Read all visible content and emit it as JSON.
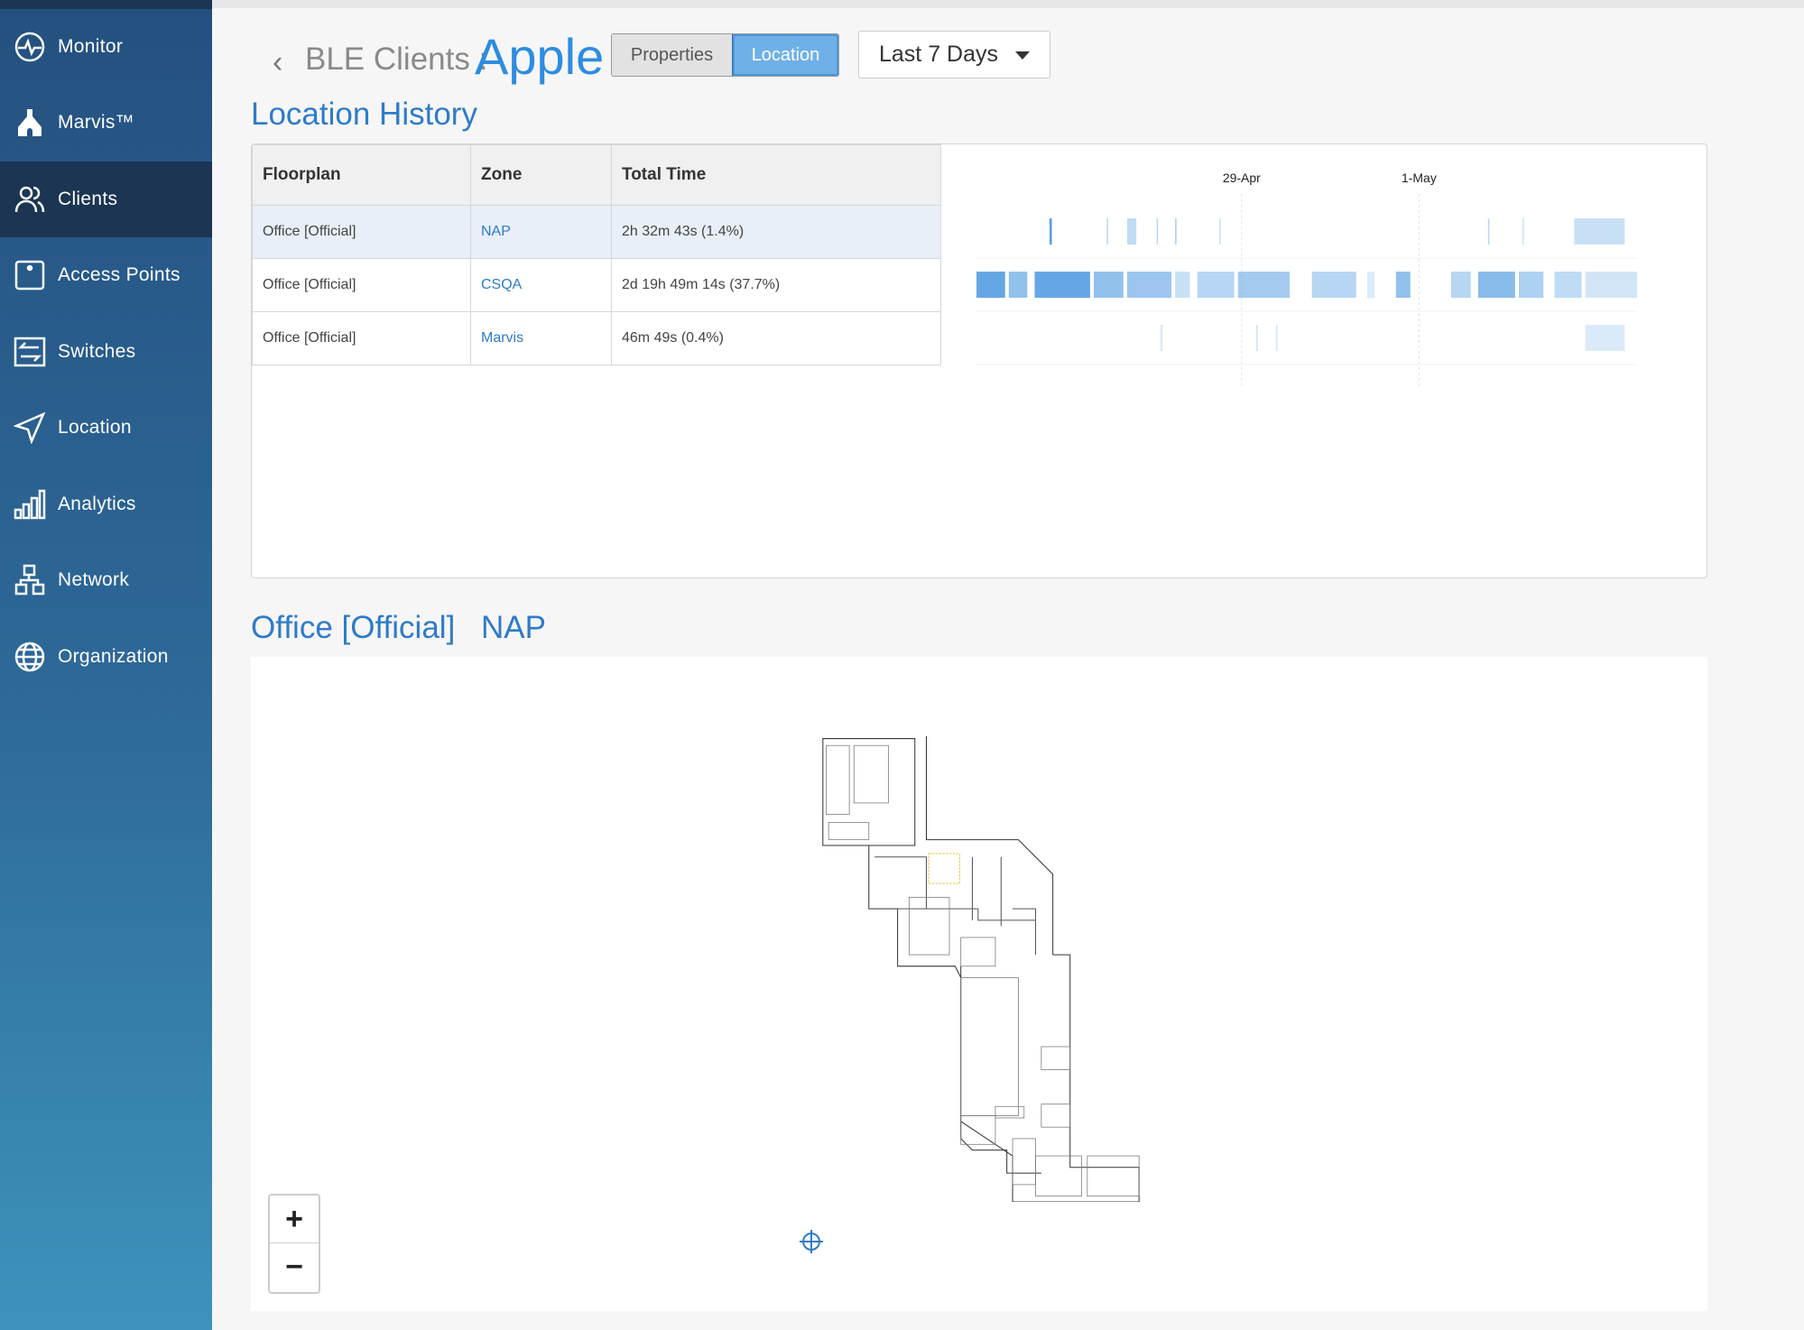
{
  "sidebar": {
    "items": [
      {
        "label": "Monitor",
        "icon": "monitor-icon"
      },
      {
        "label": "Marvis™",
        "icon": "marvis-icon"
      },
      {
        "label": "Clients",
        "icon": "clients-icon",
        "active": true
      },
      {
        "label": "Access Points",
        "icon": "access-point-icon"
      },
      {
        "label": "Switches",
        "icon": "switches-icon"
      },
      {
        "label": "Location",
        "icon": "location-arrow-icon"
      },
      {
        "label": "Analytics",
        "icon": "analytics-icon"
      },
      {
        "label": "Network",
        "icon": "network-icon"
      },
      {
        "label": "Organization",
        "icon": "globe-icon"
      }
    ]
  },
  "header": {
    "breadcrumb": "BLE Clients :",
    "client_name": "Apple",
    "tabs": {
      "properties": "Properties",
      "location": "Location"
    },
    "active_tab": "Location",
    "range": "Last 7 Days"
  },
  "history": {
    "title": "Location History",
    "columns": [
      "Floorplan",
      "Zone",
      "Total Time"
    ],
    "rows": [
      {
        "floorplan": "Office [Official]",
        "zone": "NAP",
        "total": "2h 32m 43s (1.4%)"
      },
      {
        "floorplan": "Office [Official]",
        "zone": "CSQA",
        "total": "2d 19h 49m 14s (37.7%)"
      },
      {
        "floorplan": "Office [Official]",
        "zone": "Marvis",
        "total": "46m 49s (0.4%)"
      }
    ]
  },
  "chart_data": {
    "type": "timeline",
    "x_ticks": [
      "29-Apr",
      "1-May"
    ],
    "x_range": [
      "26-Apr 00:00",
      "3-May 11:00"
    ],
    "color": "#4a98e0",
    "series": [
      {
        "zone": "NAP",
        "intervals": [
          [
            "26-Apr 20:00",
            "26-Apr 20:40",
            0.9
          ],
          [
            "27-Apr 11:30",
            "27-Apr 11:50",
            0.4
          ],
          [
            "27-Apr 17:00",
            "27-Apr 19:30",
            0.35
          ],
          [
            "28-Apr 01:00",
            "28-Apr 01:20",
            0.4
          ],
          [
            "28-Apr 06:00",
            "28-Apr 06:20",
            0.5
          ],
          [
            "28-Apr 18:00",
            "28-Apr 18:15",
            0.3
          ],
          [
            "1-May 18:40",
            "1-May 19:00",
            0.4
          ],
          [
            "2-May 04:00",
            "2-May 04:20",
            0.3
          ],
          [
            "2-May 18:00",
            "3-May 07:40",
            0.3
          ]
        ]
      },
      {
        "zone": "CSQA",
        "intervals": [
          [
            "26-Apr 00:15",
            "26-Apr 08:00",
            0.85
          ],
          [
            "26-Apr 09:00",
            "26-Apr 14:00",
            0.6
          ],
          [
            "26-Apr 16:00",
            "27-Apr 07:00",
            0.85
          ],
          [
            "27-Apr 08:00",
            "27-Apr 16:00",
            0.6
          ],
          [
            "27-Apr 17:00",
            "28-Apr 05:00",
            0.55
          ],
          [
            "28-Apr 06:00",
            "28-Apr 10:00",
            0.3
          ],
          [
            "28-Apr 12:00",
            "28-Apr 22:00",
            0.4
          ],
          [
            "28-Apr 23:00",
            "29-Apr 13:00",
            0.5
          ],
          [
            "29-Apr 19:00",
            "30-Apr 07:00",
            0.4
          ],
          [
            "30-Apr 10:00",
            "30-Apr 12:00",
            0.2
          ],
          [
            "30-Apr 17:45",
            "30-Apr 21:40",
            0.6
          ],
          [
            "1-May 08:40",
            "1-May 14:00",
            0.4
          ],
          [
            "1-May 16:00",
            "2-May 02:00",
            0.65
          ],
          [
            "2-May 03:00",
            "2-May 09:40",
            0.45
          ],
          [
            "2-May 12:40",
            "2-May 20:00",
            0.35
          ],
          [
            "2-May 21:00",
            "3-May 11:00",
            0.25
          ]
        ]
      },
      {
        "zone": "Marvis",
        "intervals": [
          [
            "28-Apr 02:00",
            "28-Apr 02:40",
            0.2
          ],
          [
            "29-Apr 04:00",
            "29-Apr 04:20",
            0.3
          ],
          [
            "29-Apr 09:20",
            "29-Apr 09:40",
            0.25
          ],
          [
            "2-May 21:00",
            "3-May 07:40",
            0.2
          ]
        ]
      }
    ]
  },
  "map": {
    "floorplan": "Office [Official]",
    "zone": "NAP",
    "zoom_in": "+",
    "zoom_out": "−",
    "highlight_color": "#e8c440"
  }
}
